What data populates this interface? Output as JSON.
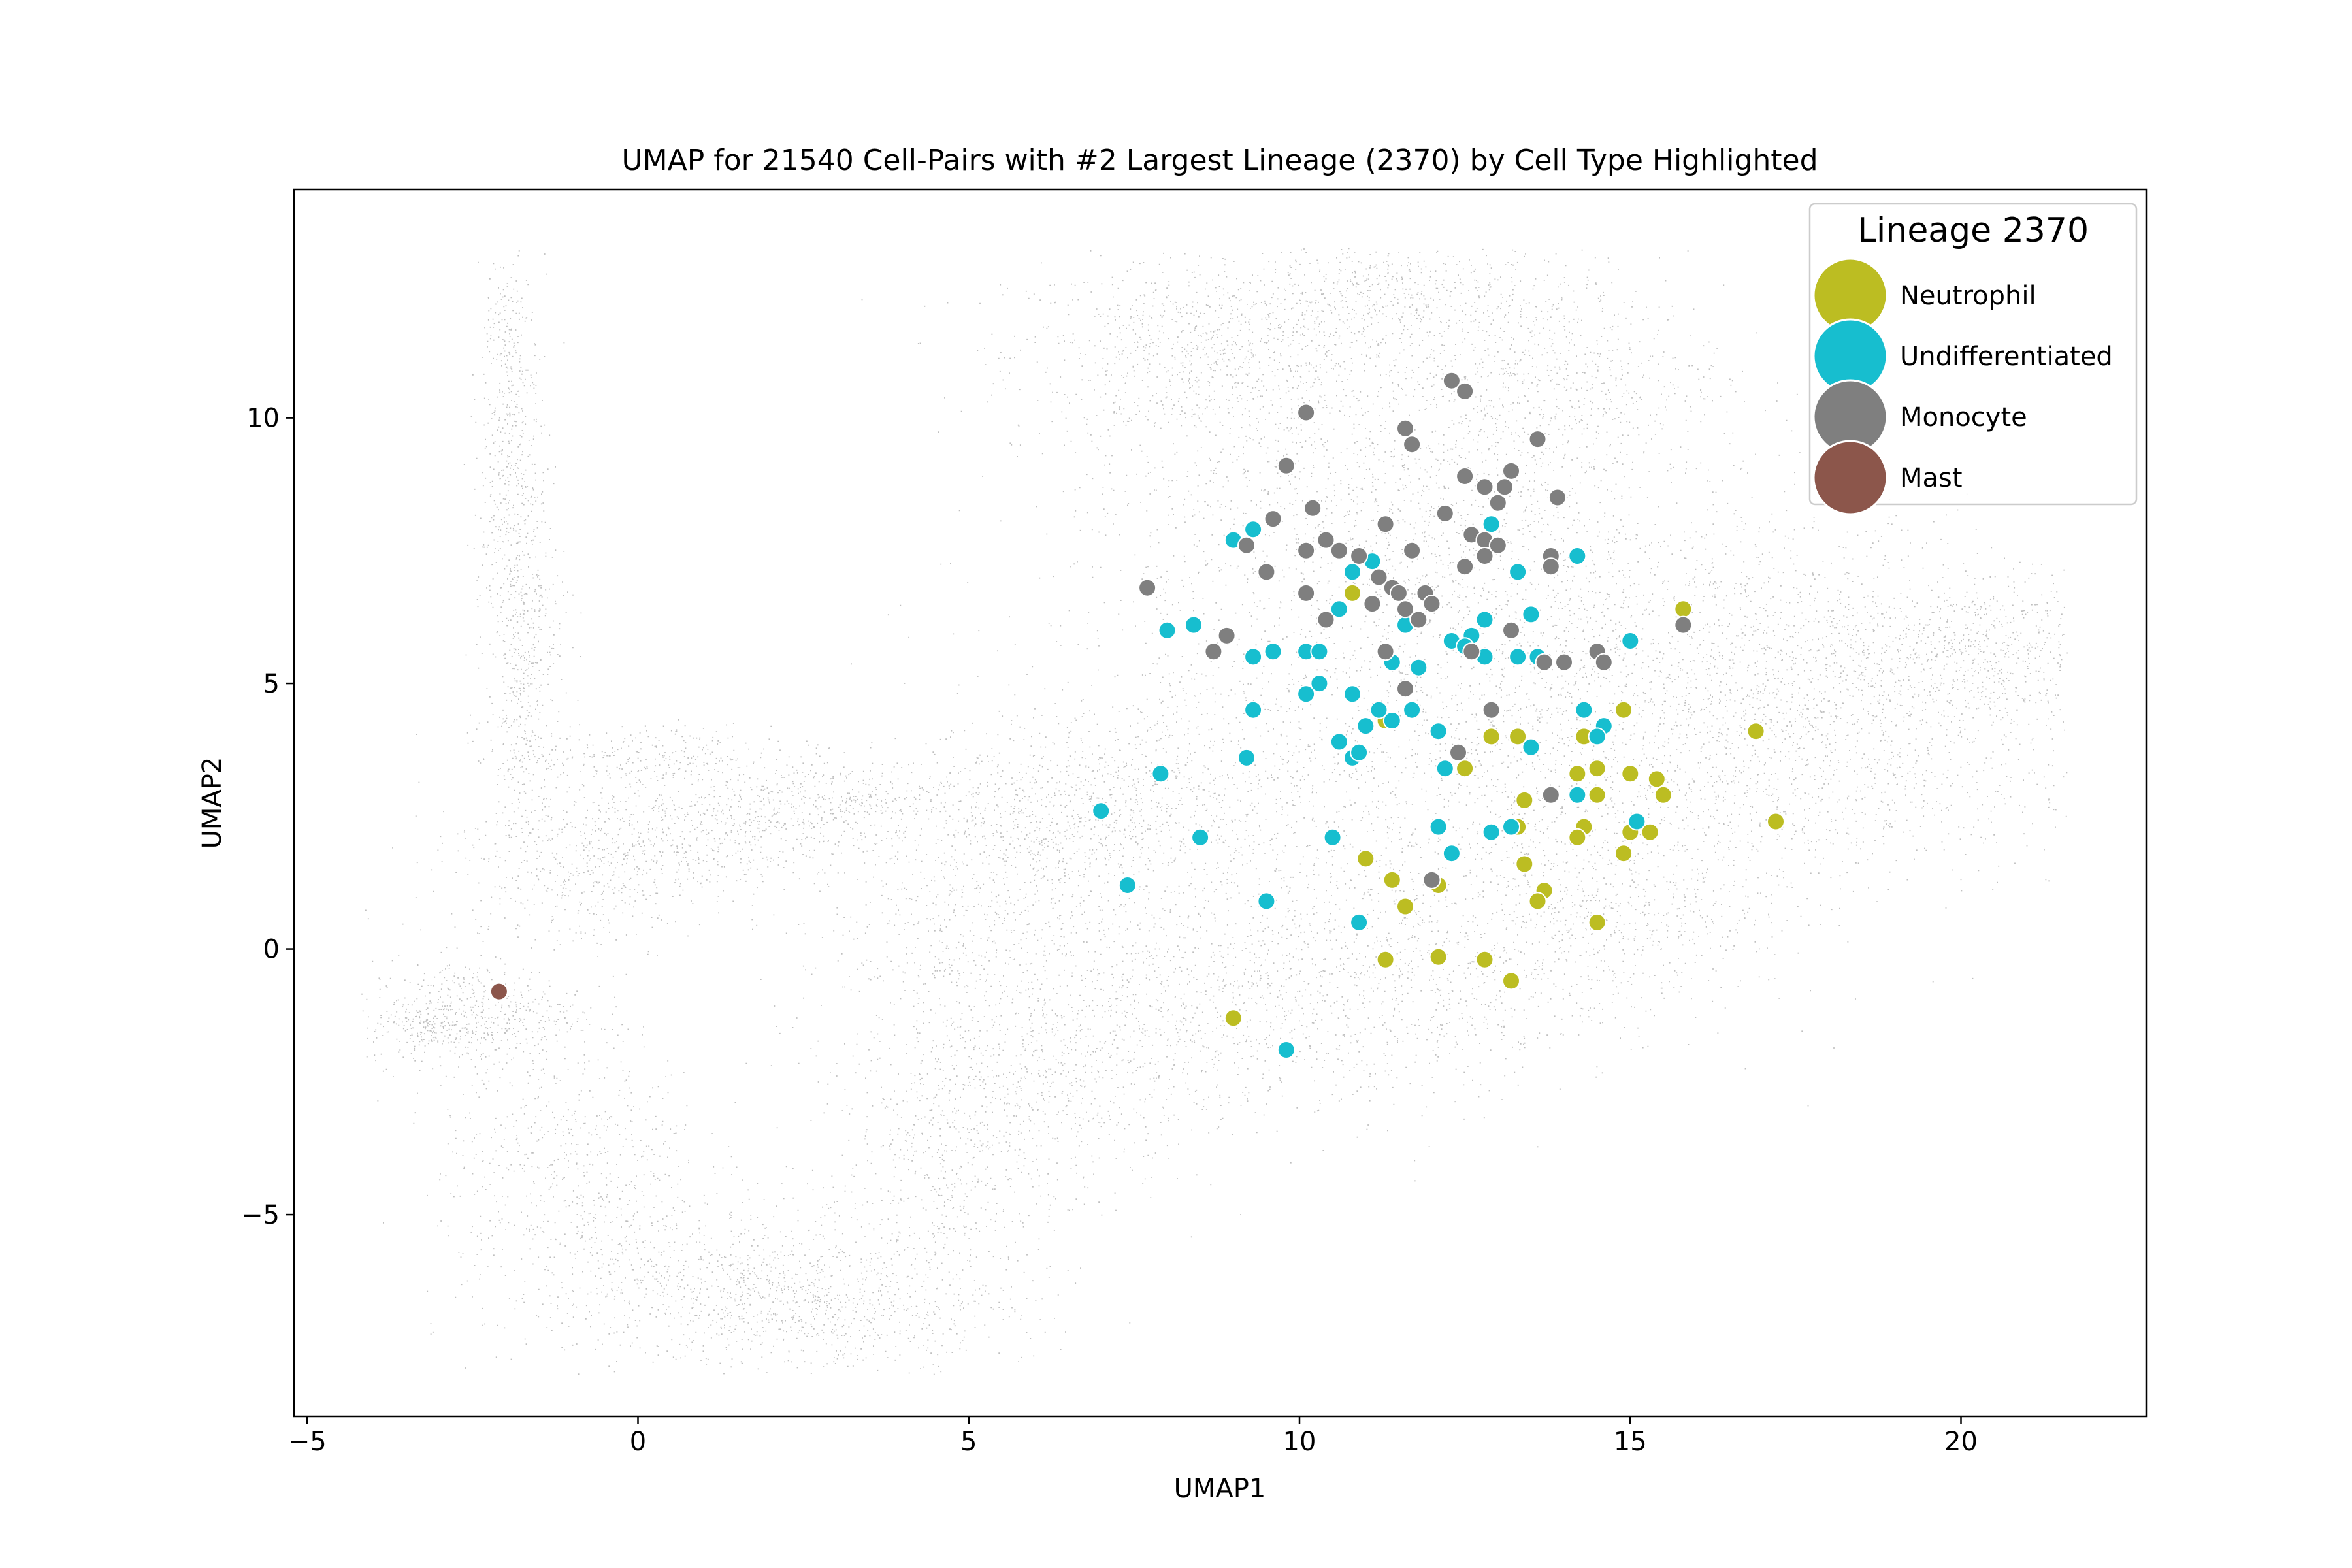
{
  "chart_data": {
    "type": "scatter",
    "title": "UMAP for 21540 Cell-Pairs with #2 Largest Lineage (2370) by Cell Type Highlighted",
    "xlabel": "UMAP1",
    "ylabel": "UMAP2",
    "xlim": [
      -5.2,
      22.8
    ],
    "ylim": [
      -8.8,
      14.3
    ],
    "xticks": [
      -5,
      0,
      5,
      10,
      15,
      20
    ],
    "xtick_labels": [
      "−5",
      "0",
      "5",
      "10",
      "15",
      "20"
    ],
    "yticks": [
      -5,
      0,
      5,
      10
    ],
    "ytick_labels": [
      "−5",
      "0",
      "5",
      "10"
    ],
    "grid": false,
    "legend": {
      "title": "Lineage 2370",
      "placement": "top-right"
    },
    "background": {
      "name": "All cell-pairs",
      "count": 21540,
      "color": "#a9a9a9"
    },
    "series": [
      {
        "name": "Neutrophil",
        "color": "#bcbd22",
        "points": [
          [
            10.8,
            6.7
          ],
          [
            15.8,
            6.4
          ],
          [
            16.9,
            4.1
          ],
          [
            14.9,
            4.5
          ],
          [
            14.3,
            4.0
          ],
          [
            13.3,
            4.0
          ],
          [
            12.9,
            4.0
          ],
          [
            12.5,
            3.4
          ],
          [
            14.2,
            3.3
          ],
          [
            14.5,
            3.4
          ],
          [
            15.0,
            3.3
          ],
          [
            15.4,
            3.2
          ],
          [
            13.4,
            2.8
          ],
          [
            14.5,
            2.9
          ],
          [
            15.5,
            2.9
          ],
          [
            17.2,
            2.4
          ],
          [
            13.3,
            2.3
          ],
          [
            14.3,
            2.3
          ],
          [
            15.0,
            2.2
          ],
          [
            15.3,
            2.2
          ],
          [
            14.2,
            2.1
          ],
          [
            14.9,
            1.8
          ],
          [
            11.0,
            1.7
          ],
          [
            13.4,
            1.6
          ],
          [
            11.4,
            1.3
          ],
          [
            12.1,
            1.2
          ],
          [
            13.7,
            1.1
          ],
          [
            13.6,
            0.9
          ],
          [
            11.6,
            0.8
          ],
          [
            14.5,
            0.5
          ],
          [
            11.3,
            -0.2
          ],
          [
            12.1,
            -0.15
          ],
          [
            12.8,
            -0.2
          ],
          [
            13.2,
            -0.6
          ],
          [
            9.0,
            -1.3
          ],
          [
            11.3,
            4.3
          ]
        ]
      },
      {
        "name": "Undifferentiated",
        "color": "#17becf",
        "points": [
          [
            9.3,
            7.9
          ],
          [
            9.0,
            7.7
          ],
          [
            10.8,
            7.1
          ],
          [
            11.1,
            7.3
          ],
          [
            12.9,
            8.0
          ],
          [
            13.3,
            7.1
          ],
          [
            14.2,
            7.4
          ],
          [
            8.0,
            6.0
          ],
          [
            8.4,
            6.1
          ],
          [
            10.6,
            6.4
          ],
          [
            11.6,
            6.1
          ],
          [
            12.3,
            5.8
          ],
          [
            12.6,
            5.9
          ],
          [
            12.8,
            6.2
          ],
          [
            13.5,
            6.3
          ],
          [
            9.3,
            5.5
          ],
          [
            9.6,
            5.6
          ],
          [
            10.1,
            5.6
          ],
          [
            10.3,
            5.6
          ],
          [
            11.4,
            5.4
          ],
          [
            11.8,
            5.3
          ],
          [
            12.5,
            5.7
          ],
          [
            12.8,
            5.5
          ],
          [
            13.6,
            5.5
          ],
          [
            13.3,
            5.5
          ],
          [
            15.0,
            5.8
          ],
          [
            10.1,
            4.8
          ],
          [
            10.3,
            5.0
          ],
          [
            10.8,
            4.8
          ],
          [
            9.3,
            4.5
          ],
          [
            11.2,
            4.5
          ],
          [
            11.4,
            4.3
          ],
          [
            11.7,
            4.5
          ],
          [
            12.1,
            4.1
          ],
          [
            14.3,
            4.5
          ],
          [
            14.6,
            4.2
          ],
          [
            14.5,
            4.0
          ],
          [
            11.0,
            4.2
          ],
          [
            10.6,
            3.9
          ],
          [
            10.8,
            3.6
          ],
          [
            10.9,
            3.7
          ],
          [
            9.2,
            3.6
          ],
          [
            12.2,
            3.4
          ],
          [
            13.5,
            3.8
          ],
          [
            7.9,
            3.3
          ],
          [
            7.0,
            2.6
          ],
          [
            12.1,
            2.3
          ],
          [
            12.9,
            2.2
          ],
          [
            13.2,
            2.3
          ],
          [
            14.2,
            2.9
          ],
          [
            15.1,
            2.4
          ],
          [
            8.5,
            2.1
          ],
          [
            10.5,
            2.1
          ],
          [
            12.3,
            1.8
          ],
          [
            7.4,
            1.2
          ],
          [
            9.5,
            0.9
          ],
          [
            10.9,
            0.5
          ],
          [
            9.8,
            -1.9
          ]
        ]
      },
      {
        "name": "Monocyte",
        "color": "#7f7f7f",
        "points": [
          [
            10.1,
            10.1
          ],
          [
            11.6,
            9.8
          ],
          [
            12.3,
            10.7
          ],
          [
            12.5,
            10.5
          ],
          [
            11.7,
            9.5
          ],
          [
            9.8,
            9.1
          ],
          [
            12.5,
            8.9
          ],
          [
            13.2,
            9.0
          ],
          [
            12.8,
            8.7
          ],
          [
            13.1,
            8.7
          ],
          [
            13.6,
            9.6
          ],
          [
            10.2,
            8.3
          ],
          [
            9.6,
            8.1
          ],
          [
            12.2,
            8.2
          ],
          [
            13.0,
            8.4
          ],
          [
            13.9,
            8.5
          ],
          [
            11.3,
            8.0
          ],
          [
            12.6,
            7.8
          ],
          [
            12.8,
            7.7
          ],
          [
            13.0,
            7.6
          ],
          [
            13.8,
            7.4
          ],
          [
            10.4,
            7.7
          ],
          [
            10.1,
            7.5
          ],
          [
            10.6,
            7.5
          ],
          [
            10.9,
            7.4
          ],
          [
            11.7,
            7.5
          ],
          [
            12.5,
            7.2
          ],
          [
            12.8,
            7.4
          ],
          [
            13.8,
            7.2
          ],
          [
            9.2,
            7.6
          ],
          [
            7.7,
            6.8
          ],
          [
            9.5,
            7.1
          ],
          [
            10.1,
            6.7
          ],
          [
            11.2,
            7.0
          ],
          [
            11.4,
            6.8
          ],
          [
            11.5,
            6.7
          ],
          [
            11.1,
            6.5
          ],
          [
            11.6,
            6.4
          ],
          [
            11.9,
            6.7
          ],
          [
            12.0,
            6.5
          ],
          [
            10.4,
            6.2
          ],
          [
            11.8,
            6.2
          ],
          [
            8.9,
            5.9
          ],
          [
            8.7,
            5.6
          ],
          [
            11.3,
            5.6
          ],
          [
            12.6,
            5.6
          ],
          [
            13.2,
            6.0
          ],
          [
            13.7,
            5.4
          ],
          [
            14.0,
            5.4
          ],
          [
            14.5,
            5.6
          ],
          [
            14.6,
            5.4
          ],
          [
            15.8,
            6.1
          ],
          [
            11.6,
            4.9
          ],
          [
            12.9,
            4.5
          ],
          [
            12.4,
            3.7
          ],
          [
            13.8,
            2.9
          ],
          [
            12.0,
            1.3
          ]
        ]
      },
      {
        "name": "Mast",
        "color": "#8c564b",
        "points": [
          [
            -2.1,
            -0.8
          ]
        ]
      }
    ]
  }
}
